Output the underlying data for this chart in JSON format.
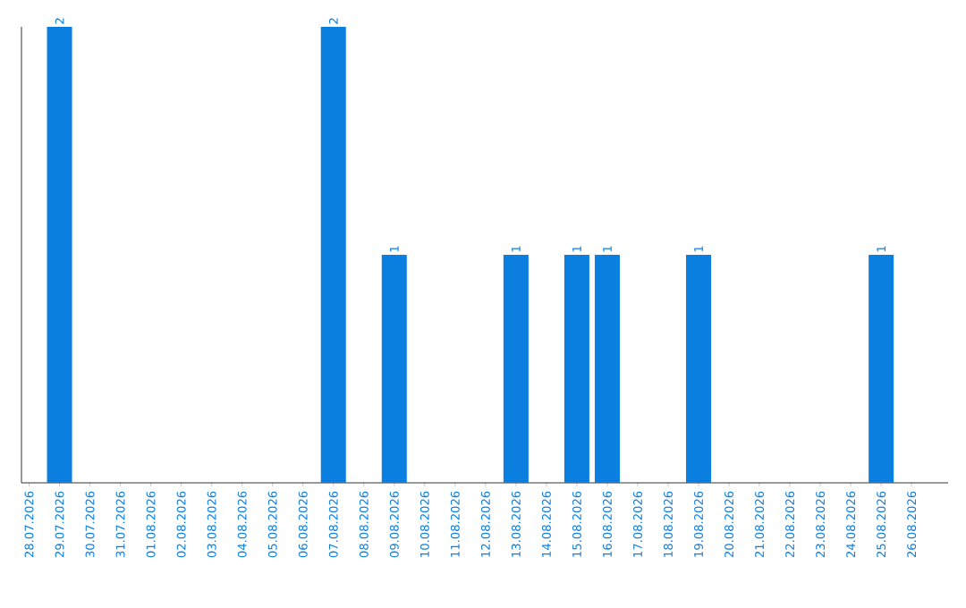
{
  "chart_data": {
    "type": "bar",
    "color": "#0a7fe0",
    "categories": [
      "28.07.2026",
      "29.07.2026",
      "30.07.2026",
      "31.07.2026",
      "01.08.2026",
      "02.08.2026",
      "03.08.2026",
      "04.08.2026",
      "05.08.2026",
      "06.08.2026",
      "07.08.2026",
      "08.08.2026",
      "09.08.2026",
      "10.08.2026",
      "11.08.2026",
      "12.08.2026",
      "13.08.2026",
      "14.08.2026",
      "15.08.2026",
      "16.08.2026",
      "17.08.2026",
      "18.08.2026",
      "19.08.2026",
      "20.08.2026",
      "21.08.2026",
      "22.08.2026",
      "23.08.2026",
      "24.08.2026",
      "25.08.2026",
      "26.08.2026"
    ],
    "values": [
      0,
      2,
      0,
      0,
      0,
      0,
      0,
      0,
      0,
      0,
      2,
      0,
      1,
      0,
      0,
      0,
      1,
      0,
      1,
      1,
      0,
      0,
      1,
      0,
      0,
      0,
      0,
      0,
      1,
      0
    ],
    "value_labels": [
      null,
      "2",
      null,
      null,
      null,
      null,
      null,
      null,
      null,
      null,
      "2",
      null,
      "1",
      null,
      null,
      null,
      "1",
      null,
      "1",
      "1",
      null,
      null,
      "1",
      null,
      null,
      null,
      null,
      null,
      "1",
      null
    ],
    "grid": false
  }
}
